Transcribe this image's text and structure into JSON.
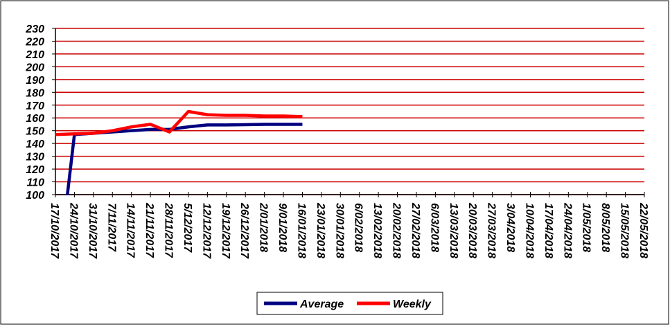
{
  "chart_data": {
    "type": "line",
    "categories": [
      "17/10/2017",
      "24/10/2017",
      "31/10/2017",
      "7/11/2017",
      "14/11/2017",
      "21/11/2017",
      "28/11/2017",
      "5/12/2017",
      "12/12/2017",
      "19/12/2017",
      "26/12/2017",
      "2/01/2018",
      "9/01/2018",
      "16/01/2018",
      "23/01/2018",
      "30/01/2018",
      "6/02/2018",
      "13/02/2018",
      "20/02/2018",
      "27/02/2018",
      "6/03/2018",
      "13/03/2018",
      "20/03/2018",
      "27/03/2018",
      "3/04/2018",
      "10/04/2018",
      "17/04/2018",
      "24/04/2018",
      "1/05/2018",
      "8/05/2018",
      "15/05/2018",
      "22/05/2018"
    ],
    "series": [
      {
        "name": "Average",
        "color": "#000080",
        "values": [
          20,
          147,
          148,
          149,
          150,
          151,
          151,
          153,
          154.5,
          154.5,
          154.7,
          155,
          155,
          155,
          null,
          null,
          null,
          null,
          null,
          null,
          null,
          null,
          null,
          null,
          null,
          null,
          null,
          null,
          null,
          null,
          null,
          null
        ]
      },
      {
        "name": "Weekly",
        "color": "#ff0000",
        "values": [
          147,
          147.5,
          148,
          150,
          153,
          155,
          149,
          165,
          162.5,
          162,
          162,
          161.5,
          161.5,
          161,
          null,
          null,
          null,
          null,
          null,
          null,
          null,
          null,
          null,
          null,
          null,
          null,
          null,
          null,
          null,
          null,
          null,
          null
        ]
      }
    ],
    "ylim": [
      100,
      230
    ],
    "yticks": [
      100,
      110,
      120,
      130,
      140,
      150,
      160,
      170,
      180,
      190,
      200,
      210,
      220,
      230
    ],
    "grid": true,
    "grid_color": "#cc0000",
    "legend": "bottom"
  }
}
